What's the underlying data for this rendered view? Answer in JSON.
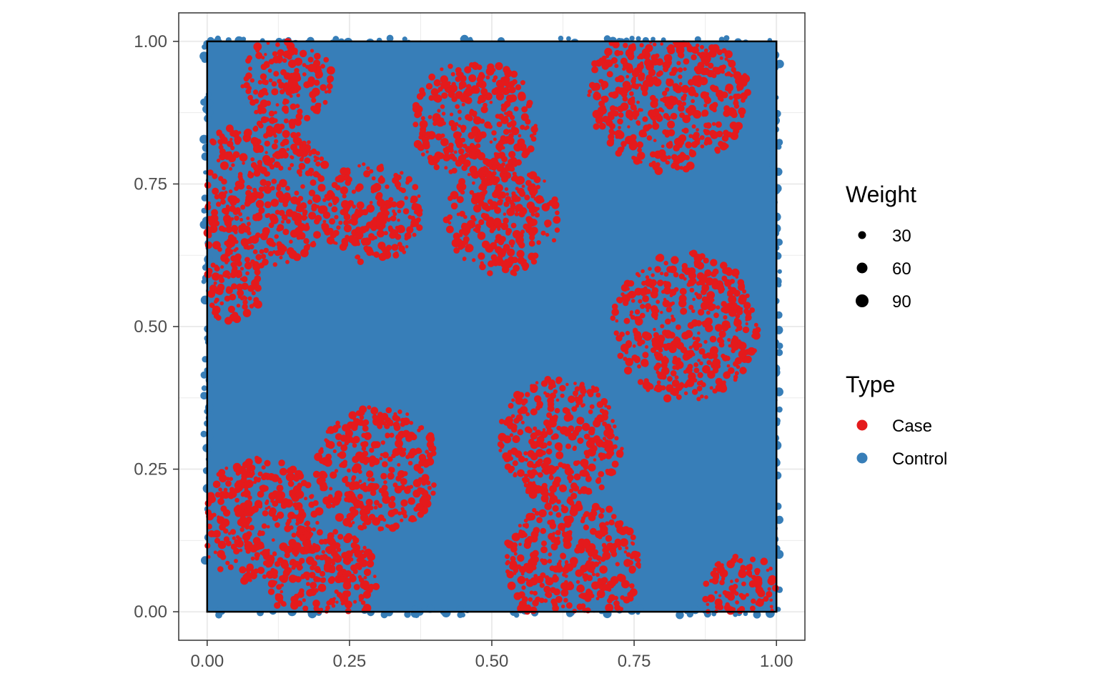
{
  "chart_data": {
    "type": "scatter",
    "title": "",
    "xlabel": "",
    "ylabel": "",
    "xlim": [
      -0.05,
      1.05
    ],
    "ylim": [
      -0.05,
      1.05
    ],
    "x_ticks": [
      0.0,
      0.25,
      0.5,
      0.75,
      1.0
    ],
    "y_ticks": [
      0.0,
      0.25,
      0.5,
      0.75,
      1.0
    ],
    "x_tick_labels": [
      "0.00",
      "0.25",
      "0.50",
      "0.75",
      "1.00"
    ],
    "y_tick_labels": [
      "0.00",
      "0.25",
      "0.50",
      "0.75",
      "1.00"
    ],
    "grid": true,
    "window": {
      "xmin": 0,
      "xmax": 1,
      "ymin": 0,
      "ymax": 1
    },
    "legend_placement": "right",
    "legends": {
      "size": {
        "title": "Weight",
        "entries": [
          {
            "label": "30",
            "value": 30
          },
          {
            "label": "60",
            "value": 60
          },
          {
            "label": "90",
            "value": 90
          }
        ]
      },
      "color": {
        "title": "Type",
        "entries": [
          {
            "label": "Case",
            "color": "#E41A1C"
          },
          {
            "label": "Control",
            "color": "#377EB8"
          }
        ]
      }
    },
    "series": [
      {
        "name": "Control",
        "color": "#377EB8",
        "description": "dense uniform fill of the unit window"
      },
      {
        "name": "Case",
        "color": "#E41A1C",
        "clusters": [
          {
            "x": 0.14,
            "y": 0.93,
            "r": 0.08
          },
          {
            "x": 0.09,
            "y": 0.73,
            "r": 0.13
          },
          {
            "x": 0.29,
            "y": 0.7,
            "r": 0.09
          },
          {
            "x": 0.04,
            "y": 0.57,
            "r": 0.06
          },
          {
            "x": 0.47,
            "y": 0.86,
            "r": 0.11
          },
          {
            "x": 0.52,
            "y": 0.69,
            "r": 0.1
          },
          {
            "x": 0.81,
            "y": 0.91,
            "r": 0.14
          },
          {
            "x": 0.84,
            "y": 0.5,
            "r": 0.13
          },
          {
            "x": 0.62,
            "y": 0.3,
            "r": 0.11
          },
          {
            "x": 0.64,
            "y": 0.08,
            "r": 0.12
          },
          {
            "x": 0.3,
            "y": 0.25,
            "r": 0.11
          },
          {
            "x": 0.09,
            "y": 0.16,
            "r": 0.11
          },
          {
            "x": 0.2,
            "y": 0.05,
            "r": 0.1
          },
          {
            "x": 0.94,
            "y": 0.03,
            "r": 0.07
          }
        ]
      }
    ]
  }
}
